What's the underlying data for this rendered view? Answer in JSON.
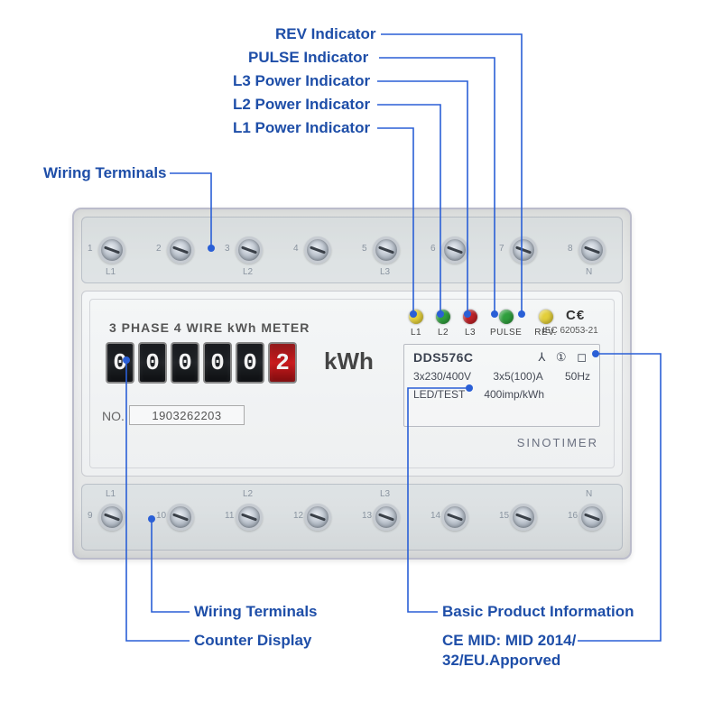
{
  "colors": {
    "callout": "#2a5fd6",
    "led": {
      "l1": "#e3cf3a",
      "l2": "#2f9f3d",
      "l3": "#c02127",
      "pulse": "#2f9f3d",
      "rev": "#e3cf3a"
    }
  },
  "callouts": {
    "rev": "REV Indicator",
    "pulse": "PULSE Indicator",
    "l3": "L3 Power Indicator",
    "l2": "L2 Power Indicator",
    "l1": "L1 Power Indicator",
    "wt_top": "Wiring Terminals",
    "wt_bottom": "Wiring Terminals",
    "counter": "Counter Display",
    "basic": "Basic Product Information",
    "cemid_l1": "CE MID: MID 2014/",
    "cemid_l2": "32/EU.Apporved"
  },
  "meter": {
    "title": "3 PHASE 4 WIRE kWh METER",
    "digits": [
      "0",
      "0",
      "0",
      "0",
      "0",
      "2"
    ],
    "digit_red_index": 5,
    "unit": "kWh",
    "serial_label": "NO.",
    "serial": "1903262203",
    "leds": [
      {
        "key": "l1",
        "label": "L1"
      },
      {
        "key": "l2",
        "label": "L2"
      },
      {
        "key": "l3",
        "label": "L3"
      },
      {
        "key": "pulse",
        "label": "PULSE"
      },
      {
        "key": "rev",
        "label": "REV."
      }
    ],
    "ce": "C€",
    "iec": "IEC 62053-21",
    "info": {
      "model": "DDS576C",
      "glyphs": "⅄ ① ◻",
      "voltage": "3x230/400V",
      "current": "3x5(100)A",
      "freq": "50Hz",
      "ledtest": "LED/TEST",
      "imp": "400imp/kWh"
    },
    "brand": "SINOTIMER",
    "top_terminals": [
      "1",
      "2",
      "3",
      "4",
      "5",
      "6",
      "7",
      "8"
    ],
    "top_phase_labels": [
      "L1",
      "",
      "L2",
      "",
      "L3",
      "",
      "",
      "N"
    ],
    "bottom_terminals": [
      "9",
      "10",
      "11",
      "12",
      "13",
      "14",
      "15",
      "16"
    ],
    "bottom_phase_labels": [
      "L1",
      "",
      "L2",
      "",
      "L3",
      "",
      "",
      "N"
    ]
  }
}
